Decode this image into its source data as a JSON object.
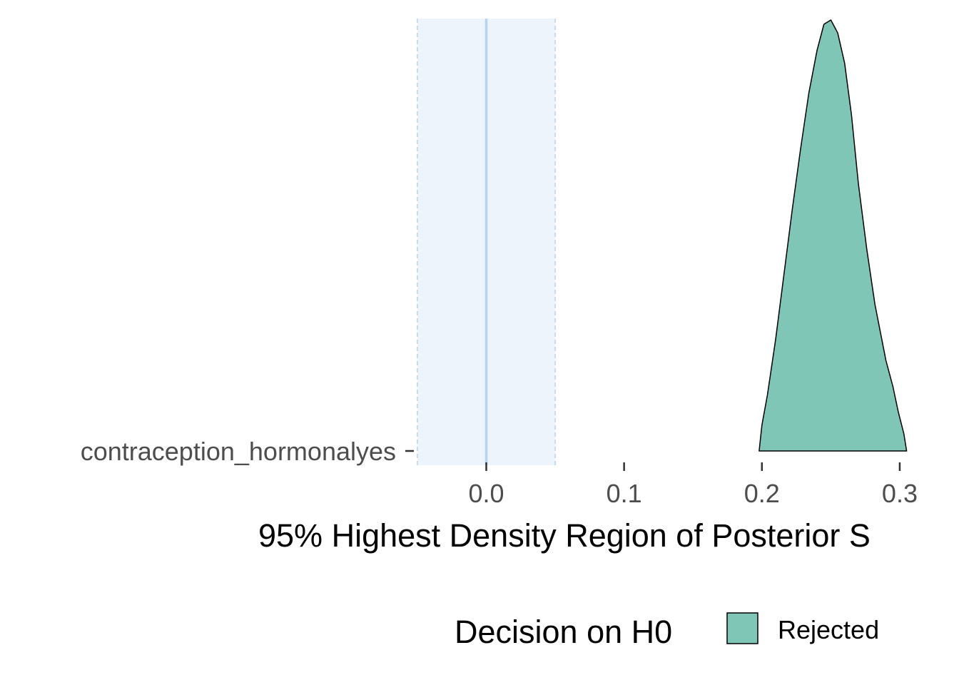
{
  "chart_data": {
    "type": "area",
    "xlabel": "95% Highest Density Region of Posterior S",
    "xlim": [
      -0.051,
      0.343
    ],
    "x_ticks": [
      {
        "value": 0.0,
        "label": "0.0"
      },
      {
        "value": 0.1,
        "label": "0.1"
      },
      {
        "value": 0.2,
        "label": "0.2"
      },
      {
        "value": 0.3,
        "label": "0.3"
      }
    ],
    "categories": [
      "contraception_hormonalyes"
    ],
    "rope": {
      "low": -0.05,
      "high": 0.05,
      "center": 0.0
    },
    "series": [
      {
        "category": "contraception_hormonalyes",
        "decision": "Rejected",
        "color": "#80C6B7",
        "density": [
          {
            "x": 0.198,
            "y": 0.0
          },
          {
            "x": 0.2,
            "y": 0.06
          },
          {
            "x": 0.204,
            "y": 0.13
          },
          {
            "x": 0.21,
            "y": 0.26
          },
          {
            "x": 0.216,
            "y": 0.41
          },
          {
            "x": 0.222,
            "y": 0.56
          },
          {
            "x": 0.228,
            "y": 0.7
          },
          {
            "x": 0.234,
            "y": 0.83
          },
          {
            "x": 0.24,
            "y": 0.93
          },
          {
            "x": 0.245,
            "y": 0.99
          },
          {
            "x": 0.25,
            "y": 1.0
          },
          {
            "x": 0.255,
            "y": 0.97
          },
          {
            "x": 0.26,
            "y": 0.9
          },
          {
            "x": 0.265,
            "y": 0.78
          },
          {
            "x": 0.27,
            "y": 0.62
          },
          {
            "x": 0.276,
            "y": 0.47
          },
          {
            "x": 0.282,
            "y": 0.34
          },
          {
            "x": 0.29,
            "y": 0.21
          },
          {
            "x": 0.295,
            "y": 0.15
          },
          {
            "x": 0.299,
            "y": 0.09
          },
          {
            "x": 0.303,
            "y": 0.04
          },
          {
            "x": 0.305,
            "y": 0.0
          }
        ]
      }
    ],
    "legend": {
      "title": "Decision on H0",
      "items": [
        {
          "label": "Rejected",
          "color": "#80C6B7"
        }
      ],
      "position": "bottom"
    },
    "colors": {
      "rope_fill": "#EDF4FB",
      "rope_line": "#B8D3EE"
    }
  }
}
